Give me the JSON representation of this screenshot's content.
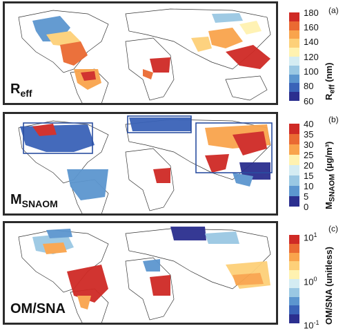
{
  "panels": [
    {
      "letter": "(a)",
      "label_main": "R",
      "label_sub": "eff",
      "colorbar_title": "R",
      "colorbar_title_sub": "eff",
      "colorbar_unit": " (nm)",
      "ticks": [
        "180",
        "160",
        "140",
        "120",
        "100",
        "80",
        "60"
      ]
    },
    {
      "letter": "(b)",
      "label_main": "M",
      "label_sub": "SNAOM",
      "colorbar_title": "M",
      "colorbar_title_sub": "SNAOM",
      "colorbar_unit": " (µg/m³)",
      "ticks": [
        "40",
        "35",
        "30",
        "25",
        "20",
        "15",
        "10",
        "5",
        "0"
      ]
    },
    {
      "letter": "(c)",
      "label_main": "OM/SNA",
      "label_sub": "",
      "colorbar_title": "OM/SNA",
      "colorbar_title_sub": "",
      "colorbar_unit": " (unitless)",
      "ticks_base": [
        "10",
        "10",
        "10"
      ],
      "ticks_exp": [
        "1",
        "0",
        "-1"
      ]
    }
  ],
  "colors": {
    "scale": [
      "#2b2f8f",
      "#3a63b8",
      "#5c96cf",
      "#9ac8e3",
      "#d4ecf2",
      "#fff2b0",
      "#fdd079",
      "#f9a44c",
      "#ea6a32",
      "#cf2a25"
    ],
    "frame": "#2b2b2b",
    "box": "#2a4ea0"
  }
}
